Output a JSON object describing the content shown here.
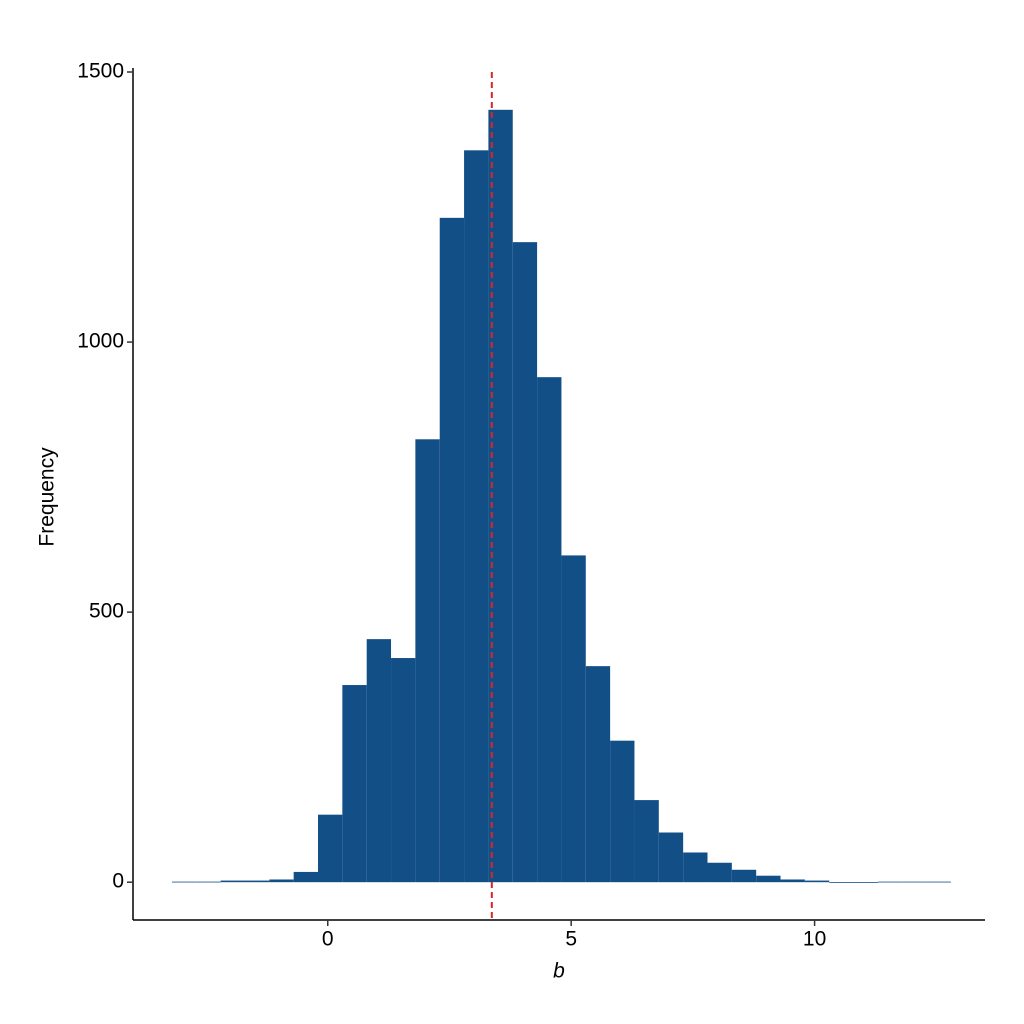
{
  "chart_data": {
    "type": "histogram",
    "xlabel": "b",
    "ylabel": "Frequency",
    "bins": [
      -3.2,
      -2.7,
      -2.2,
      -1.7,
      -1.2,
      -0.7,
      -0.2,
      0.3,
      0.8,
      1.3,
      1.8,
      2.3,
      2.8,
      3.3,
      3.8,
      4.3,
      4.8,
      5.3,
      5.8,
      6.3,
      6.8,
      7.3,
      7.8,
      8.3,
      8.8,
      9.3,
      9.8,
      10.3,
      10.8,
      11.3,
      11.8,
      12.3,
      12.8
    ],
    "values": [
      1,
      1,
      3,
      3,
      5,
      19,
      125,
      365,
      450,
      415,
      820,
      1230,
      1355,
      1430,
      1185,
      935,
      605,
      400,
      262,
      152,
      92,
      55,
      36,
      23,
      12,
      5,
      3,
      0,
      0,
      1,
      1,
      1
    ],
    "color": "#134f87",
    "xlim": [
      -4,
      13.5
    ],
    "xticks": [
      0,
      5,
      10
    ],
    "ylim": [
      -70,
      1500
    ],
    "yticks": [
      0,
      500,
      1000,
      1500
    ],
    "grid": false,
    "vline": {
      "value": 3.37,
      "color": "#d62728"
    }
  }
}
